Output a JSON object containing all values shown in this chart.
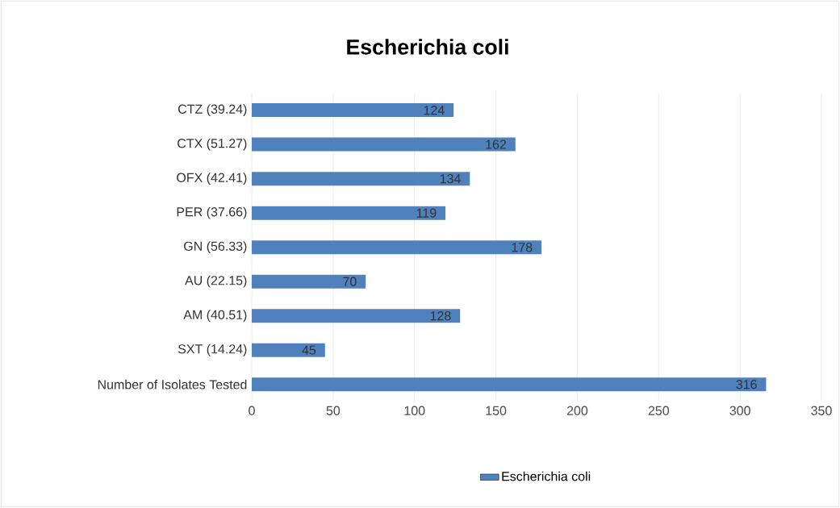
{
  "chart_data": {
    "type": "bar",
    "orientation": "horizontal",
    "title": "Escherichia coli",
    "categories": [
      "CTZ (39.24)",
      "CTX (51.27)",
      "OFX (42.41)",
      "PER (37.66)",
      "GN (56.33)",
      "AU (22.15)",
      "AM (40.51)",
      "SXT (14.24)",
      "Number of Isolates Tested"
    ],
    "series": [
      {
        "name": "Escherichia coli",
        "color": "#4f81bd",
        "values": [
          124,
          162,
          134,
          119,
          178,
          70,
          128,
          45,
          316
        ]
      }
    ],
    "xlim": [
      0,
      350
    ],
    "xticks": [
      0,
      50,
      100,
      150,
      200,
      250,
      300,
      350
    ],
    "grid": "x",
    "legend": "bottom",
    "data_labels": true
  }
}
